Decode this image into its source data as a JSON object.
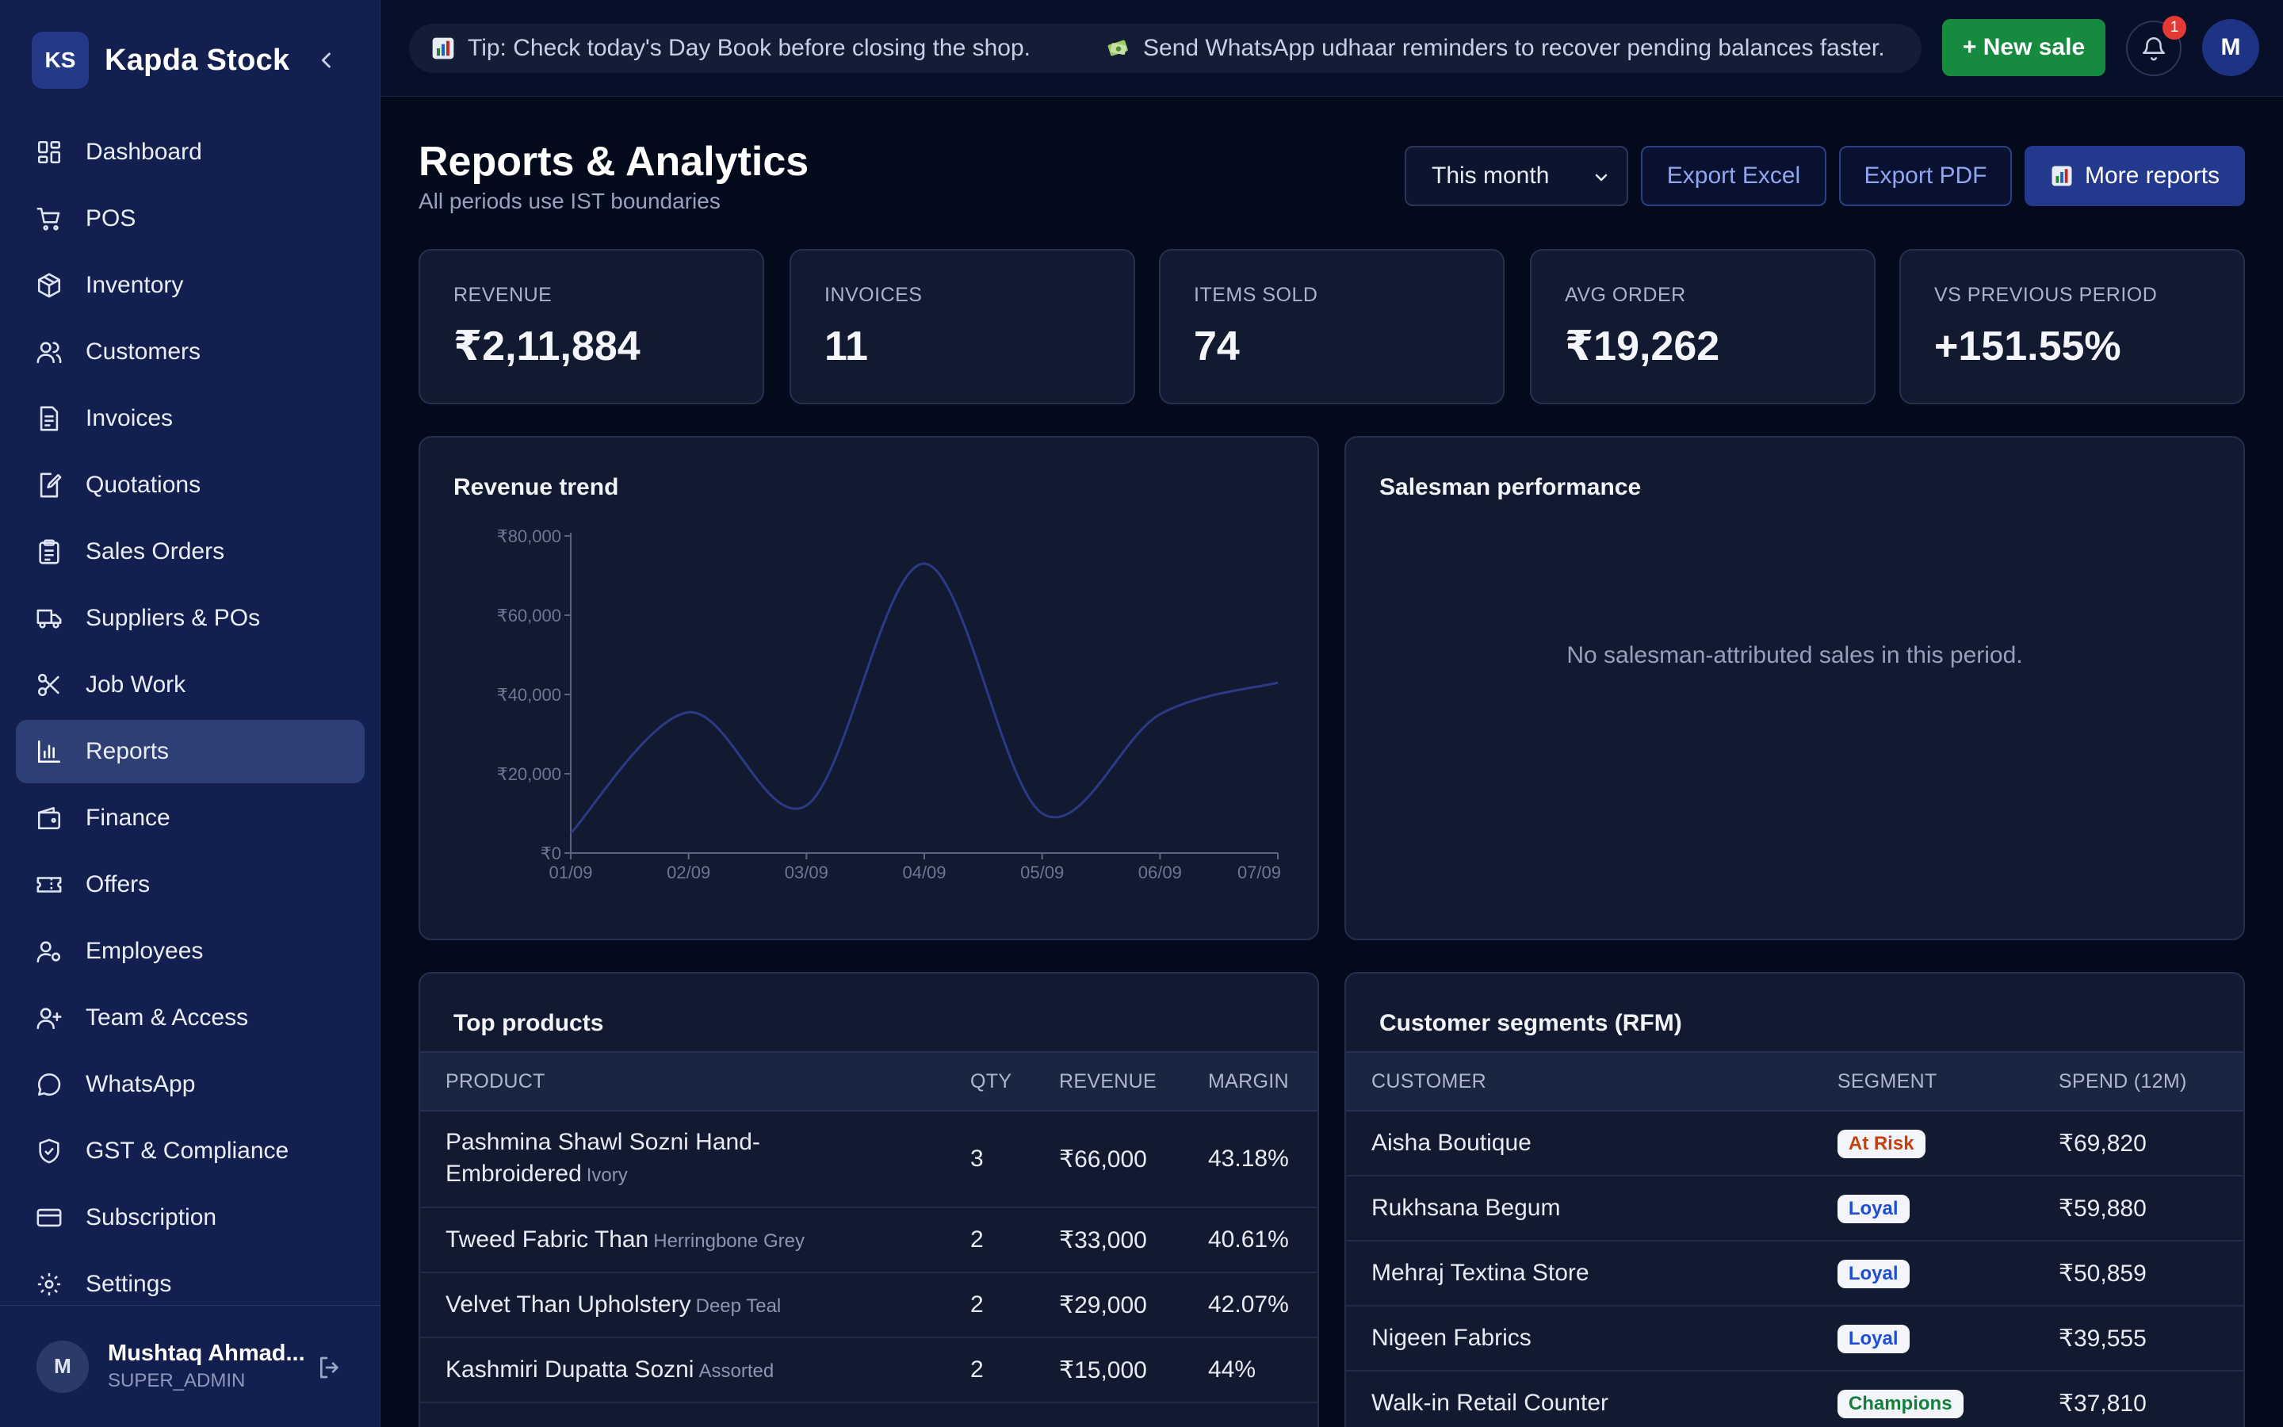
{
  "brand": {
    "logo_text": "KS",
    "name": "Kapda Stock"
  },
  "sidebar": {
    "items": [
      {
        "label": "Dashboard",
        "icon": "dashboard-icon"
      },
      {
        "label": "POS",
        "icon": "cart-icon"
      },
      {
        "label": "Inventory",
        "icon": "box-icon"
      },
      {
        "label": "Customers",
        "icon": "users-icon"
      },
      {
        "label": "Invoices",
        "icon": "invoice-icon"
      },
      {
        "label": "Quotations",
        "icon": "quotation-icon"
      },
      {
        "label": "Sales Orders",
        "icon": "clipboard-icon"
      },
      {
        "label": "Suppliers & POs",
        "icon": "truck-icon"
      },
      {
        "label": "Job Work",
        "icon": "scissors-icon"
      },
      {
        "label": "Reports",
        "icon": "bar-chart-icon",
        "active": true
      },
      {
        "label": "Finance",
        "icon": "wallet-icon"
      },
      {
        "label": "Offers",
        "icon": "ticket-icon"
      },
      {
        "label": "Employees",
        "icon": "employee-icon"
      },
      {
        "label": "Team & Access",
        "icon": "user-plus-icon"
      },
      {
        "label": "WhatsApp",
        "icon": "chat-icon"
      },
      {
        "label": "GST & Compliance",
        "icon": "shield-check-icon"
      },
      {
        "label": "Subscription",
        "icon": "credit-card-icon"
      },
      {
        "label": "Settings",
        "icon": "gear-icon"
      }
    ]
  },
  "user": {
    "initial": "M",
    "name": "Mushtaq Ahmad...",
    "role": "SUPER_ADMIN"
  },
  "topbar": {
    "tips": [
      {
        "icon": "chart-icon",
        "text": "Tip: Check today's Day Book before closing the shop."
      },
      {
        "icon": "money-icon",
        "text": "Send WhatsApp udhaar reminders to recover pending balances faster."
      }
    ],
    "new_sale_label": "+ New sale",
    "notification_count": "1",
    "profile_initial": "M"
  },
  "header": {
    "title": "Reports & Analytics",
    "subtitle": "All periods use IST boundaries",
    "period": "This month",
    "export_excel": "Export Excel",
    "export_pdf": "Export PDF",
    "more_reports": "More reports"
  },
  "kpis": [
    {
      "label": "REVENUE",
      "value": "₹2,11,884"
    },
    {
      "label": "INVOICES",
      "value": "11"
    },
    {
      "label": "ITEMS SOLD",
      "value": "74"
    },
    {
      "label": "AVG ORDER",
      "value": "₹19,262"
    },
    {
      "label": "VS PREVIOUS PERIOD",
      "value": "+151.55%"
    }
  ],
  "revenue_trend": {
    "title": "Revenue trend",
    "line_color": "#2c3a86"
  },
  "chart_data": {
    "type": "line",
    "title": "Revenue trend",
    "x": [
      "01/09",
      "02/09",
      "03/09",
      "04/09",
      "05/09",
      "06/09",
      "07/09"
    ],
    "series": [
      {
        "values": [
          5000,
          35500,
          12000,
          73000,
          10000,
          35000,
          43000
        ]
      }
    ],
    "y_ticks": [
      "₹0",
      "₹20,000",
      "₹40,000",
      "₹60,000",
      "₹80,000"
    ],
    "ylim": [
      0,
      80000
    ],
    "grid": false
  },
  "salesman": {
    "title": "Salesman performance",
    "empty_message": "No salesman-attributed sales in this period."
  },
  "top_products": {
    "title": "Top products",
    "headers": {
      "product": "PRODUCT",
      "qty": "QTY",
      "revenue": "REVENUE",
      "margin": "MARGIN"
    },
    "rows": [
      {
        "name": "Pashmina Shawl Sozni Hand-Embroidered",
        "variant": "Ivory",
        "qty": "3",
        "revenue": "₹66,000",
        "margin": "43.18%"
      },
      {
        "name": "Tweed Fabric Than",
        "variant": "Herringbone Grey",
        "qty": "2",
        "revenue": "₹33,000",
        "margin": "40.61%"
      },
      {
        "name": "Velvet Than Upholstery",
        "variant": "Deep Teal",
        "qty": "2",
        "revenue": "₹29,000",
        "margin": "42.07%"
      },
      {
        "name": "Kashmiri Dupatta Sozni",
        "variant": "Assorted",
        "qty": "2",
        "revenue": "₹15,000",
        "margin": "44%"
      }
    ]
  },
  "segments": {
    "title": "Customer segments (RFM)",
    "headers": {
      "customer": "CUSTOMER",
      "segment": "SEGMENT",
      "spend": "SPEND (12M)"
    },
    "rows": [
      {
        "customer": "Aisha Boutique",
        "segment": "At Risk",
        "color": "#c2410c",
        "spend": "₹69,820"
      },
      {
        "customer": "Rukhsana Begum",
        "segment": "Loyal",
        "color": "#1d4ed8",
        "spend": "₹59,880"
      },
      {
        "customer": "Mehraj Textina Store",
        "segment": "Loyal",
        "color": "#1d4ed8",
        "spend": "₹50,859"
      },
      {
        "customer": "Nigeen Fabrics",
        "segment": "Loyal",
        "color": "#1d4ed8",
        "spend": "₹39,555"
      },
      {
        "customer": "Walk-in Retail Counter",
        "segment": "Champions",
        "color": "#15803d",
        "spend": "₹37,810"
      }
    ]
  },
  "colors": {
    "sidebar_bg": "#13204f",
    "page_bg": "#030a1c",
    "primary": "#23398e",
    "success": "#168a3f",
    "danger": "#e53935"
  }
}
